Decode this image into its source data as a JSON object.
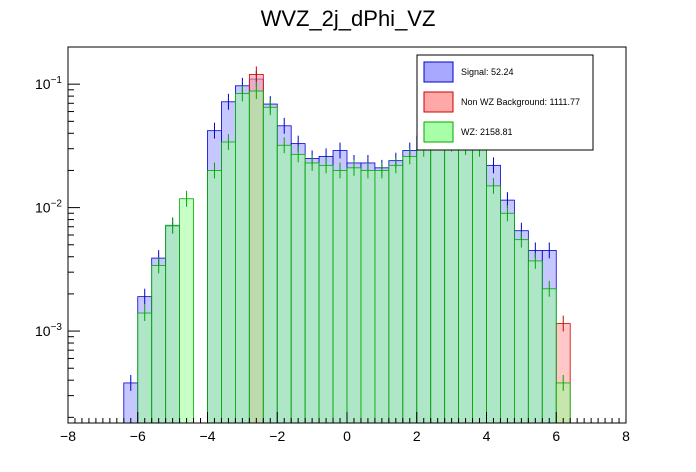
{
  "chart_data": {
    "type": "bar",
    "title": "WVZ_2j_dPhi_VZ",
    "xlabel": "",
    "ylabel": "",
    "xlim": [
      -8,
      8
    ],
    "ylim": [
      0.00018,
      0.2
    ],
    "yscale": "log",
    "grid": false,
    "legend_position": "top-right",
    "x_ticks": [
      -8,
      -6,
      -4,
      -2,
      0,
      2,
      4,
      6,
      8
    ],
    "y_ticks": [
      {
        "value": 0.001,
        "base": "10",
        "exp": "−3"
      },
      {
        "value": 0.01,
        "base": "10",
        "exp": "−2"
      },
      {
        "value": 0.1,
        "base": "10",
        "exp": "−1"
      }
    ],
    "bin_edges": [
      -6.4,
      -6.0,
      -5.6,
      -5.2,
      -4.8,
      -4.4,
      -4.0,
      -3.6,
      -3.2,
      -2.8,
      -2.4,
      -2.0,
      -1.6,
      -1.2,
      -0.8,
      -0.4,
      0.0,
      0.4,
      0.8,
      1.2,
      1.6,
      2.0,
      2.4,
      2.8,
      3.2,
      3.6,
      4.0,
      4.4,
      4.8,
      5.2,
      5.6,
      6.0,
      6.4
    ],
    "series": [
      {
        "name": "Signal: 52.24",
        "color": "#9999ff",
        "edge": "#0000cc",
        "values": [
          0.00038,
          0.0019,
          0.0039,
          0.0071,
          0.0,
          0.0,
          0.042,
          0.072,
          0.097,
          0.11,
          0.069,
          0.046,
          0.033,
          0.025,
          0.026,
          0.029,
          0.023,
          0.023,
          0.021,
          0.024,
          0.029,
          0.038,
          0.044,
          0.04,
          0.039,
          0.048,
          0.022,
          0.0115,
          0.0065,
          0.0045,
          0.0045,
          0.0
        ]
      },
      {
        "name": "Non WZ Background: 1111.77",
        "color": "#ff9999",
        "edge": "#cc0000",
        "values": [
          0.0,
          0.0,
          0.0,
          0.0,
          0.0,
          0.0,
          0.0,
          0.0,
          0.0,
          0.12,
          0.0,
          0.0,
          0.0,
          0.0,
          0.0,
          0.0,
          0.0,
          0.0,
          0.0,
          0.0,
          0.0,
          0.0,
          0.0,
          0.0,
          0.0,
          0.0,
          0.0,
          0.0,
          0.0,
          0.0,
          0.0,
          0.00115
        ]
      },
      {
        "name": "WZ: 2158.81",
        "color": "#99ff99",
        "edge": "#00aa00",
        "values": [
          0.0,
          0.0014,
          0.0034,
          0.0072,
          0.0118,
          0.0,
          0.02,
          0.034,
          0.084,
          0.088,
          0.065,
          0.032,
          0.027,
          0.023,
          0.022,
          0.02,
          0.021,
          0.02,
          0.02,
          0.022,
          0.026,
          0.03,
          0.035,
          0.033,
          0.031,
          0.03,
          0.015,
          0.009,
          0.0055,
          0.0037,
          0.0022,
          0.00038
        ]
      }
    ]
  }
}
